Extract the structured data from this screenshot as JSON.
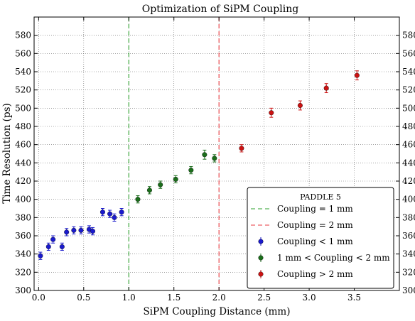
{
  "chart_data": {
    "type": "scatter",
    "title": "Optimization of SiPM Coupling",
    "xlabel": "SiPM Coupling Distance (mm)",
    "ylabel": "Time Resolution (ps)",
    "xlim": [
      -0.05,
      4.0
    ],
    "ylim": [
      300,
      600
    ],
    "xticks": [
      "0.0",
      "0.5",
      "1.0",
      "1.5",
      "2.0",
      "2.5",
      "3.0",
      "3.5"
    ],
    "yticks": [
      "300",
      "320",
      "340",
      "360",
      "380",
      "400",
      "420",
      "440",
      "460",
      "480",
      "500",
      "520",
      "540",
      "560",
      "580"
    ],
    "grid": true,
    "grid_style": "dotted",
    "y_ticks_mirrored_right": true,
    "legend": {
      "title": "PADDLE 5",
      "placement": "lower-right",
      "entries": [
        {
          "label": "Coupling = 1 mm",
          "kind": "dashed-line",
          "color": "#2ca02c"
        },
        {
          "label": "Coupling = 2 mm",
          "kind": "dashed-line",
          "color": "#e8393f"
        },
        {
          "label": "Coupling < 1 mm",
          "kind": "marker",
          "color": "#1a1acd"
        },
        {
          "label": "1 mm < Coupling < 2 mm",
          "kind": "marker",
          "color": "#1b6e1b"
        },
        {
          "label": "Coupling > 2 mm",
          "kind": "marker",
          "color": "#cc1212"
        }
      ]
    },
    "vlines": [
      {
        "x": 1.0,
        "color": "#2ca02c",
        "style": "dashed"
      },
      {
        "x": 2.0,
        "color": "#e8393f",
        "style": "dashed"
      }
    ],
    "series": [
      {
        "name": "Coupling < 1 mm",
        "color": "#1a1acd",
        "x": [
          0.02,
          0.11,
          0.16,
          0.26,
          0.31,
          0.39,
          0.47,
          0.56,
          0.6,
          0.71,
          0.79,
          0.84,
          0.92
        ],
        "y": [
          338,
          348,
          356,
          348,
          364,
          366,
          366,
          367,
          365,
          386,
          384,
          380,
          386
        ],
        "yerr": [
          4,
          4,
          4,
          4,
          4,
          4,
          4,
          4,
          4,
          4,
          4,
          4,
          4
        ]
      },
      {
        "name": "1 mm < Coupling < 2 mm",
        "color": "#1b6e1b",
        "x": [
          1.1,
          1.23,
          1.35,
          1.52,
          1.69,
          1.84,
          1.95
        ],
        "y": [
          400,
          410,
          416,
          422,
          432,
          449,
          445
        ],
        "yerr": [
          4,
          4,
          4,
          4,
          4,
          5,
          4
        ]
      },
      {
        "name": "Coupling > 2 mm",
        "color": "#cc1212",
        "x": [
          2.25,
          2.58,
          2.9,
          3.19,
          3.53
        ],
        "y": [
          456,
          495,
          503,
          522,
          536
        ],
        "yerr": [
          4,
          5,
          5,
          5,
          5
        ]
      }
    ]
  }
}
